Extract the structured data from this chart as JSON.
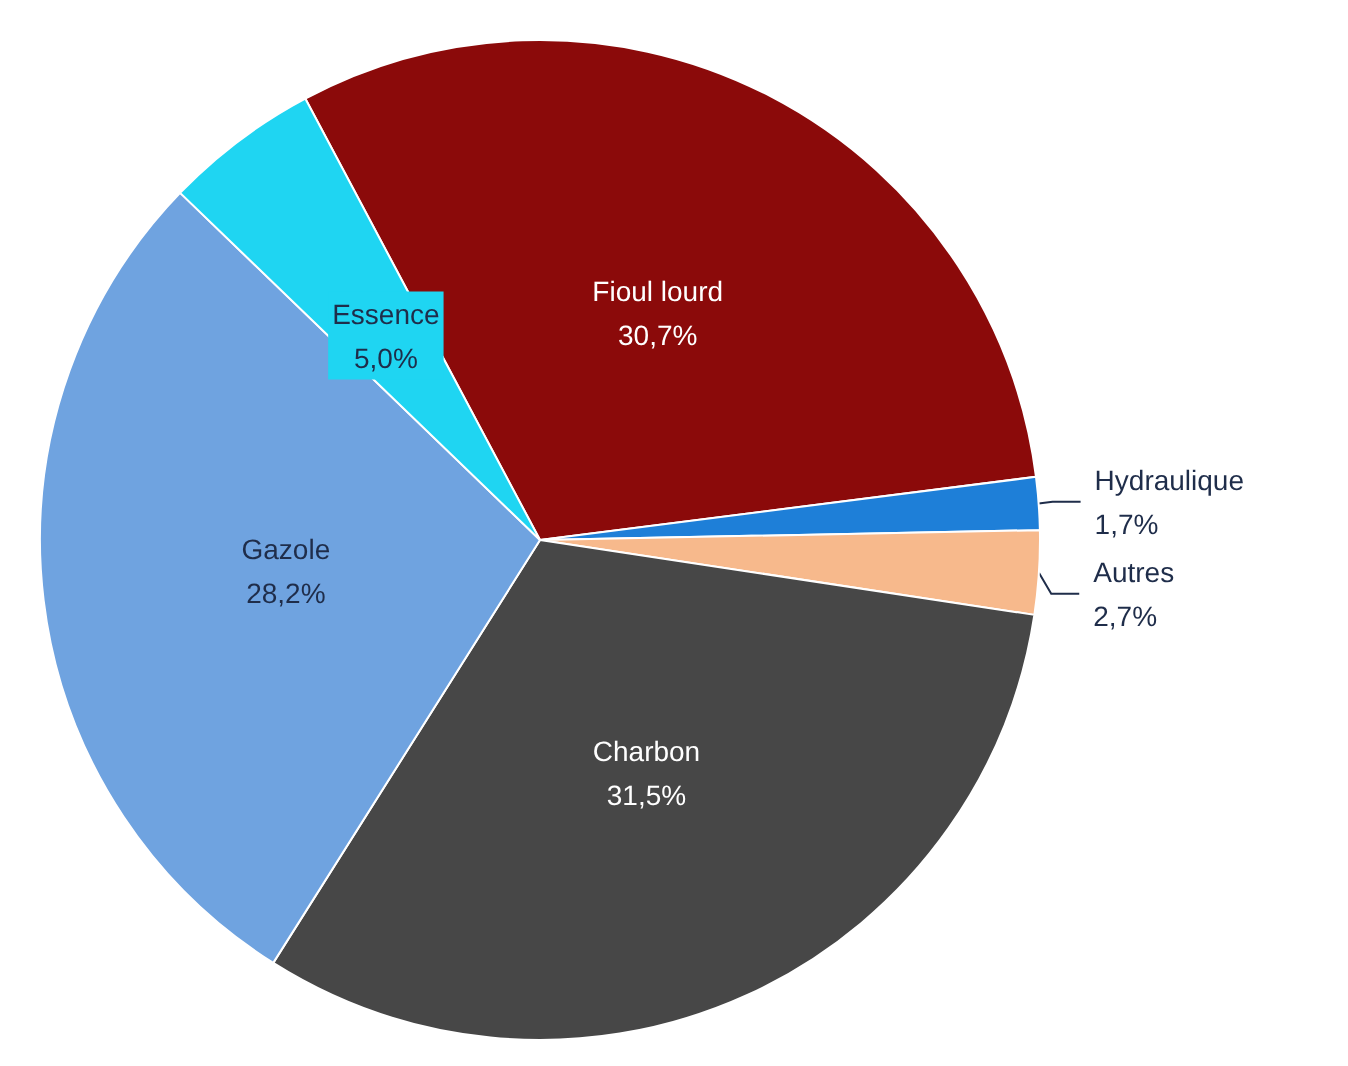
{
  "chart_data": {
    "type": "pie",
    "categories": [
      "Fioul lourd",
      "Hydraulique",
      "Autres",
      "Charbon",
      "Gazole",
      "Essence"
    ],
    "values": [
      30.7,
      1.7,
      2.7,
      31.5,
      28.2,
      5.0
    ],
    "colors": [
      "#8b0a0a",
      "#1e7fd8",
      "#f7b98c",
      "#474747",
      "#6fa3e0",
      "#1fd5f2"
    ],
    "value_labels": [
      "30,7%",
      "1,7%",
      "2,7%",
      "31,5%",
      "28,2%",
      "5,0%"
    ],
    "legend": false
  }
}
